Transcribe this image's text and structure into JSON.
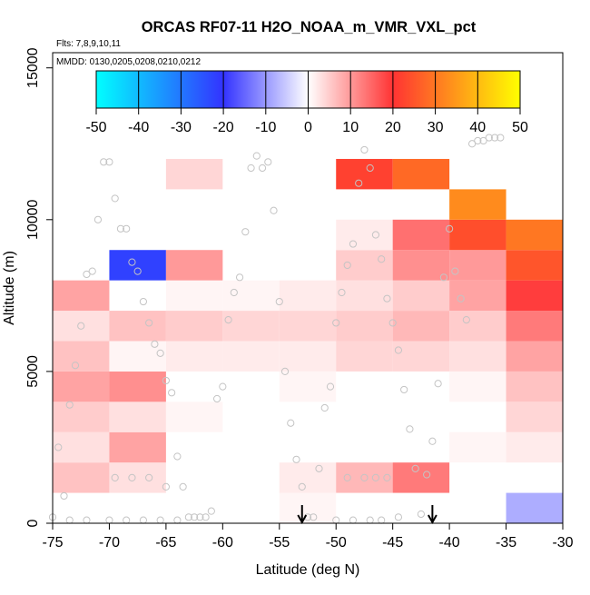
{
  "chart_data": {
    "type": "heatmap",
    "title": "ORCAS RF07-11 H2O_NOAA_m_VMR_VXL_pct",
    "flights_label": "Flts: 7,8,9,10,11",
    "dates_label": "MMDD: 0130,0205,0208,0210,0212",
    "xlabel": "Latitude (deg N)",
    "ylabel": "Altitude (m)",
    "xlim": [
      -75,
      -30
    ],
    "ylim": [
      0,
      15500
    ],
    "x_ticks": [
      -75,
      -70,
      -65,
      -60,
      -55,
      -50,
      -45,
      -40,
      -35,
      -30
    ],
    "y_ticks": [
      0,
      5000,
      10000,
      15000
    ],
    "colorbar": {
      "range": [
        -50,
        50
      ],
      "ticks": [
        -50,
        -40,
        -30,
        -20,
        -10,
        0,
        10,
        20,
        30,
        40,
        50
      ],
      "stops": [
        {
          "v": -50,
          "color": "#00ffff"
        },
        {
          "v": -20,
          "color": "#3333ff"
        },
        {
          "v": 0,
          "color": "#ffffff"
        },
        {
          "v": 20,
          "color": "#ff3333"
        },
        {
          "v": 50,
          "color": "#ffff00"
        }
      ]
    },
    "cell_width_deg": 5,
    "cell_height_m": 1000,
    "cells": [
      {
        "lat": -75,
        "alt": 1000,
        "value": 6
      },
      {
        "lat": -75,
        "alt": 2000,
        "value": 3
      },
      {
        "lat": -75,
        "alt": 3000,
        "value": 5
      },
      {
        "lat": -75,
        "alt": 4000,
        "value": 9
      },
      {
        "lat": -75,
        "alt": 5000,
        "value": 6
      },
      {
        "lat": -75,
        "alt": 6000,
        "value": 3
      },
      {
        "lat": -75,
        "alt": 7000,
        "value": 9
      },
      {
        "lat": -70,
        "alt": 1000,
        "value": 3
      },
      {
        "lat": -70,
        "alt": 2000,
        "value": 9
      },
      {
        "lat": -70,
        "alt": 3000,
        "value": 3
      },
      {
        "lat": -70,
        "alt": 4000,
        "value": 11
      },
      {
        "lat": -70,
        "alt": 5000,
        "value": 1
      },
      {
        "lat": -70,
        "alt": 6000,
        "value": 6
      },
      {
        "lat": -70,
        "alt": 8000,
        "value": -22
      },
      {
        "lat": -65,
        "alt": 3000,
        "value": 1
      },
      {
        "lat": -65,
        "alt": 5000,
        "value": 2
      },
      {
        "lat": -65,
        "alt": 6000,
        "value": 5
      },
      {
        "lat": -65,
        "alt": 7000,
        "value": 1
      },
      {
        "lat": -65,
        "alt": 8000,
        "value": 10
      },
      {
        "lat": -65,
        "alt": 11000,
        "value": 4
      },
      {
        "lat": -60,
        "alt": 4000,
        "value": 0
      },
      {
        "lat": -60,
        "alt": 5000,
        "value": 2
      },
      {
        "lat": -60,
        "alt": 6000,
        "value": 4
      },
      {
        "lat": -60,
        "alt": 7000,
        "value": 1
      },
      {
        "lat": -55,
        "alt": 0,
        "value": 1
      },
      {
        "lat": -55,
        "alt": 1000,
        "value": 2
      },
      {
        "lat": -55,
        "alt": 4000,
        "value": 1
      },
      {
        "lat": -55,
        "alt": 5000,
        "value": 2
      },
      {
        "lat": -55,
        "alt": 6000,
        "value": 4
      },
      {
        "lat": -55,
        "alt": 7000,
        "value": 2
      },
      {
        "lat": -50,
        "alt": 1000,
        "value": 7
      },
      {
        "lat": -50,
        "alt": 5000,
        "value": 4
      },
      {
        "lat": -50,
        "alt": 6000,
        "value": 5
      },
      {
        "lat": -50,
        "alt": 7000,
        "value": 3
      },
      {
        "lat": -50,
        "alt": 8000,
        "value": 5
      },
      {
        "lat": -50,
        "alt": 9000,
        "value": 2
      },
      {
        "lat": -50,
        "alt": 11000,
        "value": 22
      },
      {
        "lat": -45,
        "alt": 1000,
        "value": 13
      },
      {
        "lat": -45,
        "alt": 5000,
        "value": 4
      },
      {
        "lat": -45,
        "alt": 6000,
        "value": 7
      },
      {
        "lat": -45,
        "alt": 7000,
        "value": 5
      },
      {
        "lat": -45,
        "alt": 8000,
        "value": 11
      },
      {
        "lat": -45,
        "alt": 9000,
        "value": 14
      },
      {
        "lat": -45,
        "alt": 11000,
        "value": 28
      },
      {
        "lat": -40,
        "alt": 2000,
        "value": 1
      },
      {
        "lat": -40,
        "alt": 4000,
        "value": 1
      },
      {
        "lat": -40,
        "alt": 5000,
        "value": 3
      },
      {
        "lat": -40,
        "alt": 6000,
        "value": 5
      },
      {
        "lat": -40,
        "alt": 7000,
        "value": 9
      },
      {
        "lat": -40,
        "alt": 8000,
        "value": 10
      },
      {
        "lat": -40,
        "alt": 9000,
        "value": 24
      },
      {
        "lat": -40,
        "alt": 10000,
        "value": 33
      },
      {
        "lat": -35,
        "alt": 0,
        "value": -8
      },
      {
        "lat": -35,
        "alt": 2000,
        "value": 2
      },
      {
        "lat": -35,
        "alt": 3000,
        "value": 4
      },
      {
        "lat": -35,
        "alt": 4000,
        "value": 6
      },
      {
        "lat": -35,
        "alt": 5000,
        "value": 9
      },
      {
        "lat": -35,
        "alt": 6000,
        "value": 13
      },
      {
        "lat": -35,
        "alt": 7000,
        "value": 19
      },
      {
        "lat": -35,
        "alt": 8000,
        "value": 25
      },
      {
        "lat": -35,
        "alt": 9000,
        "value": 30
      }
    ],
    "arrows_lat": [
      -53,
      -41.5
    ],
    "obs_points": [
      [
        -75,
        200
      ],
      [
        -74.5,
        2500
      ],
      [
        -74,
        900
      ],
      [
        -73.5,
        3900
      ],
      [
        -73,
        5200
      ],
      [
        -72.5,
        6500
      ],
      [
        -72,
        8200
      ],
      [
        -71.5,
        8300
      ],
      [
        -71,
        10000
      ],
      [
        -70.5,
        11900
      ],
      [
        -70,
        11900
      ],
      [
        -69.5,
        10700
      ],
      [
        -69,
        9700
      ],
      [
        -68.5,
        9700
      ],
      [
        -68,
        8600
      ],
      [
        -67.5,
        8300
      ],
      [
        -67,
        7300
      ],
      [
        -66.5,
        6600
      ],
      [
        -66,
        5900
      ],
      [
        -65.5,
        5600
      ],
      [
        -65,
        4700
      ],
      [
        -64.5,
        4300
      ],
      [
        -64,
        2200
      ],
      [
        -63.5,
        1200
      ],
      [
        -63,
        200
      ],
      [
        -62.5,
        200
      ],
      [
        -62,
        200
      ],
      [
        -61.5,
        200
      ],
      [
        -61,
        400
      ],
      [
        -60.5,
        4100
      ],
      [
        -60,
        4500
      ],
      [
        -59.5,
        6700
      ],
      [
        -59,
        7600
      ],
      [
        -58.5,
        8100
      ],
      [
        -58,
        9600
      ],
      [
        -57.5,
        11700
      ],
      [
        -57,
        12100
      ],
      [
        -56.5,
        11700
      ],
      [
        -56,
        11900
      ],
      [
        -55.5,
        10300
      ],
      [
        -55,
        7300
      ],
      [
        -54.5,
        5000
      ],
      [
        -54,
        3300
      ],
      [
        -53.5,
        2100
      ],
      [
        -53,
        1200
      ],
      [
        -52.5,
        200
      ],
      [
        -52,
        200
      ],
      [
        -51.5,
        1800
      ],
      [
        -51,
        3800
      ],
      [
        -50.5,
        4500
      ],
      [
        -50,
        6600
      ],
      [
        -49.5,
        7600
      ],
      [
        -49,
        8500
      ],
      [
        -48.5,
        9200
      ],
      [
        -48,
        11200
      ],
      [
        -47.5,
        12300
      ],
      [
        -47,
        11700
      ],
      [
        -46.5,
        9500
      ],
      [
        -46,
        8700
      ],
      [
        -45.5,
        7400
      ],
      [
        -45,
        6600
      ],
      [
        -44.5,
        5700
      ],
      [
        -44,
        4400
      ],
      [
        -43.5,
        3100
      ],
      [
        -43,
        1800
      ],
      [
        -42.5,
        300
      ],
      [
        -42,
        1600
      ],
      [
        -41.5,
        2700
      ],
      [
        -41,
        4600
      ],
      [
        -40.5,
        8100
      ],
      [
        -40,
        9700
      ],
      [
        -39.5,
        8300
      ],
      [
        -39,
        7400
      ],
      [
        -38.5,
        6700
      ],
      [
        -38,
        12500
      ],
      [
        -37.5,
        12600
      ],
      [
        -37,
        12600
      ],
      [
        -36.5,
        12700
      ],
      [
        -36,
        12700
      ],
      [
        -35.5,
        12700
      ],
      [
        -73.5,
        100
      ],
      [
        -72,
        100
      ],
      [
        -70,
        100
      ],
      [
        -68.5,
        100
      ],
      [
        -67,
        100
      ],
      [
        -65.5,
        100
      ],
      [
        -64,
        100
      ],
      [
        -50,
        100
      ],
      [
        -48.5,
        100
      ],
      [
        -47,
        100
      ],
      [
        -46,
        100
      ],
      [
        -44.5,
        200
      ],
      [
        -69.5,
        1500
      ],
      [
        -68,
        1500
      ],
      [
        -66.5,
        1500
      ],
      [
        -49,
        1500
      ],
      [
        -47.5,
        1500
      ],
      [
        -46.5,
        1500
      ],
      [
        -45.5,
        1500
      ],
      [
        -65,
        1200
      ]
    ]
  }
}
